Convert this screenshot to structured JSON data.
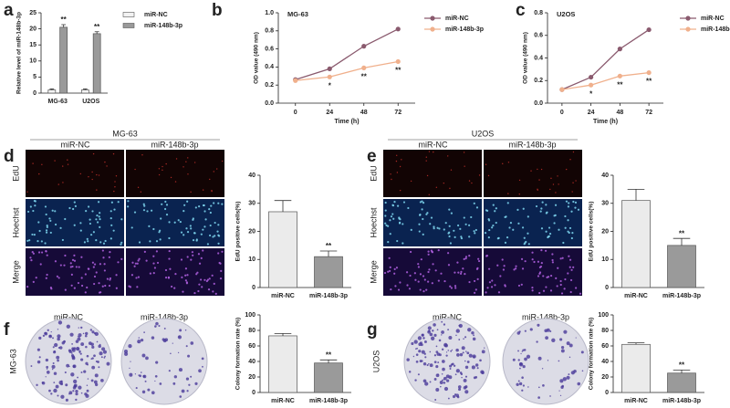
{
  "chart_data": [
    {
      "panel": "a",
      "type": "bar",
      "ylabel": "Relative level of miR-148b-3p",
      "categories": [
        "MG-63",
        "U2OS"
      ],
      "series": [
        {
          "name": "miR-NC",
          "color": "#f2f2f2",
          "values": [
            1,
            1
          ],
          "errors": [
            0.3,
            0.3
          ]
        },
        {
          "name": "miR-148b-3p",
          "color": "#9a9a9a",
          "values": [
            20.5,
            18.5
          ],
          "errors": [
            0.8,
            0.6
          ],
          "annotations": [
            "**",
            "**"
          ]
        }
      ],
      "ylim": [
        0,
        25
      ],
      "yticks": [
        0,
        5,
        10,
        15,
        20,
        25
      ]
    },
    {
      "panel": "b",
      "type": "line",
      "title": "MG-63",
      "xlabel": "Time (h)",
      "ylabel": "OD value (490 nm)",
      "x": [
        0,
        24,
        48,
        72
      ],
      "series": [
        {
          "name": "miR-NC",
          "color": "#8a5a6e",
          "values": [
            0.26,
            0.38,
            0.63,
            0.82
          ]
        },
        {
          "name": "miR-148b-3p",
          "color": "#f0b08c",
          "values": [
            0.25,
            0.29,
            0.39,
            0.46
          ],
          "annotations": [
            null,
            "*",
            "**",
            "**"
          ]
        }
      ],
      "xlim": [
        -12,
        84
      ],
      "xticks": [
        0,
        24,
        48,
        72
      ],
      "ylim": [
        0,
        1
      ],
      "yticks": [
        {
          "value": 0,
          "label": "0.0"
        },
        {
          "value": 0.2,
          "label": "0.2"
        },
        {
          "value": 0.4,
          "label": "0.4"
        },
        {
          "value": 0.6,
          "label": "0.6"
        },
        {
          "value": 0.8,
          "label": "0.8"
        },
        {
          "value": 1,
          "label": "1.0"
        }
      ]
    },
    {
      "panel": "c",
      "type": "line",
      "title": "U2OS",
      "xlabel": "Time (h)",
      "ylabel": "OD value (490 nm)",
      "x": [
        0,
        24,
        48,
        72
      ],
      "series": [
        {
          "name": "miR-NC",
          "color": "#8a5a6e",
          "values": [
            0.12,
            0.23,
            0.48,
            0.65
          ]
        },
        {
          "name": "miR-148b-3p",
          "color": "#f0b08c",
          "values": [
            0.12,
            0.16,
            0.24,
            0.27
          ],
          "annotations": [
            null,
            "*",
            "**",
            "**"
          ]
        }
      ],
      "xlim": [
        -12,
        84
      ],
      "xticks": [
        0,
        24,
        48,
        72
      ],
      "ylim": [
        0,
        0.8
      ],
      "yticks": [
        {
          "value": 0,
          "label": "0.0"
        },
        {
          "value": 0.2,
          "label": "0.2"
        },
        {
          "value": 0.4,
          "label": "0.4"
        },
        {
          "value": 0.6,
          "label": "0.6"
        },
        {
          "value": 0.8,
          "label": "0.8"
        }
      ]
    },
    {
      "panel": "d",
      "type": "bar",
      "ylabel": "EdU positive cells(%)",
      "categories": [
        "miR-NC",
        "miR-148b-3p"
      ],
      "values": [
        27,
        11
      ],
      "errors": [
        4,
        2
      ],
      "annotations": [
        null,
        "**"
      ],
      "colors": [
        "#ebebeb",
        "#9a9a9a"
      ],
      "ylim": [
        0,
        40
      ],
      "yticks": [
        0,
        10,
        20,
        30,
        40
      ]
    },
    {
      "panel": "e",
      "type": "bar",
      "ylabel": "EdU positive cells(%)",
      "categories": [
        "miR-NC",
        "miR-148b-3p"
      ],
      "values": [
        31,
        15
      ],
      "errors": [
        4,
        2.5
      ],
      "annotations": [
        null,
        "**"
      ],
      "colors": [
        "#ebebeb",
        "#9a9a9a"
      ],
      "ylim": [
        0,
        40
      ],
      "yticks": [
        0,
        10,
        20,
        30,
        40
      ]
    },
    {
      "panel": "f",
      "type": "bar",
      "ylabel": "Colony formation rate (%)",
      "categories": [
        "miR-NC",
        "miR-148b-3p"
      ],
      "values": [
        73,
        38
      ],
      "errors": [
        3,
        4
      ],
      "annotations": [
        null,
        "**"
      ],
      "colors": [
        "#ebebeb",
        "#9a9a9a"
      ],
      "ylim": [
        0,
        100
      ],
      "yticks": [
        0,
        20,
        40,
        60,
        80,
        100
      ]
    },
    {
      "panel": "g",
      "type": "bar",
      "ylabel": "Colony formation rate (%)",
      "categories": [
        "miR-NC",
        "miR-148b-3p"
      ],
      "values": [
        62,
        25
      ],
      "errors": [
        2,
        4
      ],
      "annotations": [
        null,
        "**"
      ],
      "colors": [
        "#ebebeb",
        "#9a9a9a"
      ],
      "ylim": [
        0,
        100
      ],
      "yticks": [
        0,
        20,
        40,
        60,
        80,
        100
      ]
    }
  ],
  "images": [
    {
      "title": "MG-63",
      "columns": [
        "miR-NC",
        "miR-148b-3p"
      ],
      "rows": [
        "EdU",
        "Hoechst",
        "Merge"
      ]
    },
    {
      "title": "U2OS",
      "columns": [
        "miR-NC",
        "miR-148b-3p"
      ],
      "rows": [
        "EdU",
        "Hoechst",
        "Merge"
      ]
    },
    {
      "columns": [
        "miR-NC",
        "miR-148b-3p"
      ],
      "rows": [
        "MG-63"
      ]
    },
    {
      "columns": [
        "miR-NC",
        "miR-148b-3p"
      ],
      "rows": [
        "U2OS"
      ]
    }
  ]
}
